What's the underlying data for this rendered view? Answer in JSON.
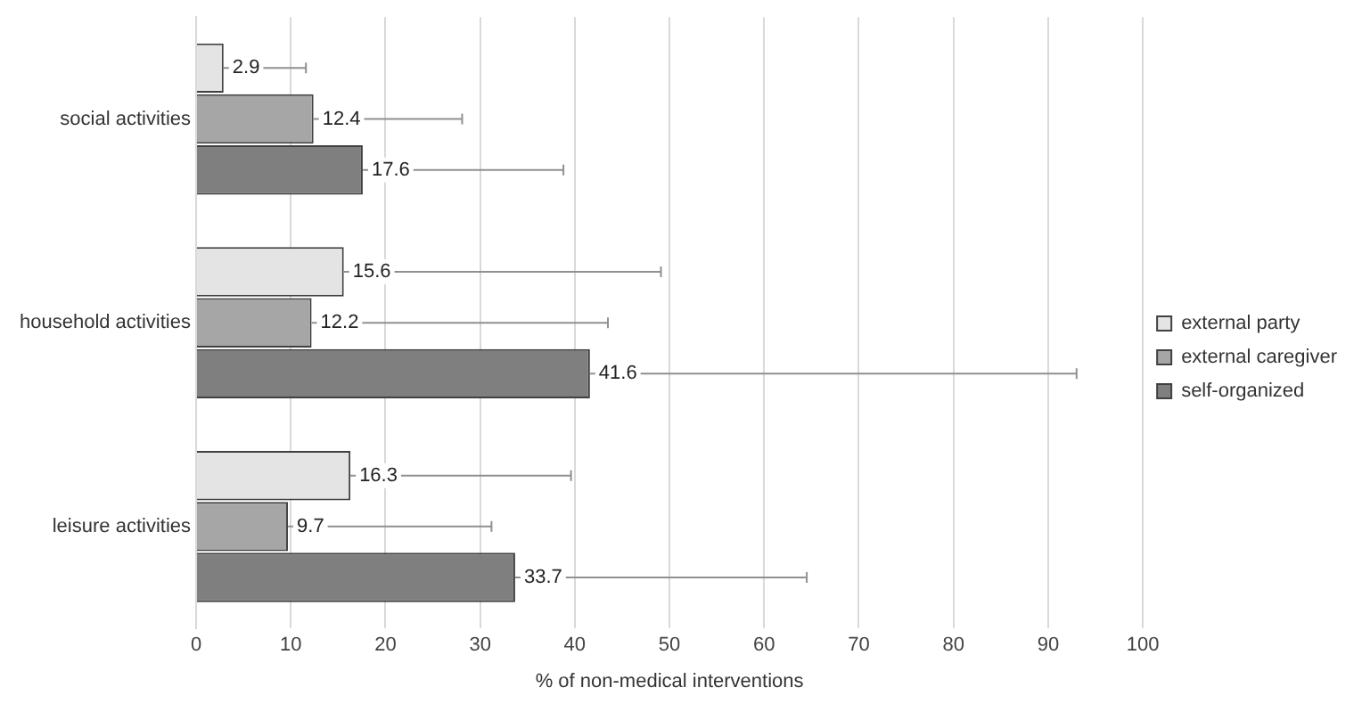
{
  "chart_data": {
    "type": "bar",
    "orientation": "horizontal",
    "xlabel": "% of non-medical interventions",
    "categories": [
      "social activities",
      "household activities",
      "leisure activities"
    ],
    "series": [
      {
        "name": "external party",
        "color": "#e4e4e4",
        "values": [
          2.9,
          15.6,
          16.3
        ],
        "errors": [
          [
            2.9,
            11.6
          ],
          [
            15.6,
            49.1
          ],
          [
            16.3,
            39.6
          ]
        ]
      },
      {
        "name": "external caregiver",
        "color": "#a6a6a6",
        "values": [
          12.4,
          12.2,
          9.7
        ],
        "errors": [
          [
            12.4,
            28.1
          ],
          [
            12.2,
            43.5
          ],
          [
            9.7,
            31.2
          ]
        ]
      },
      {
        "name": "self-organized",
        "color": "#7f7f7f",
        "values": [
          17.6,
          41.6,
          33.7
        ],
        "errors": [
          [
            17.6,
            38.8
          ],
          [
            41.6,
            93
          ],
          [
            33.7,
            64.5
          ]
        ]
      }
    ],
    "xlim": [
      0,
      100
    ],
    "xticks": [
      0,
      10,
      20,
      30,
      40,
      50,
      60,
      70,
      80,
      90,
      100
    ],
    "grid": "x",
    "legend": "right",
    "data_labels": true
  }
}
